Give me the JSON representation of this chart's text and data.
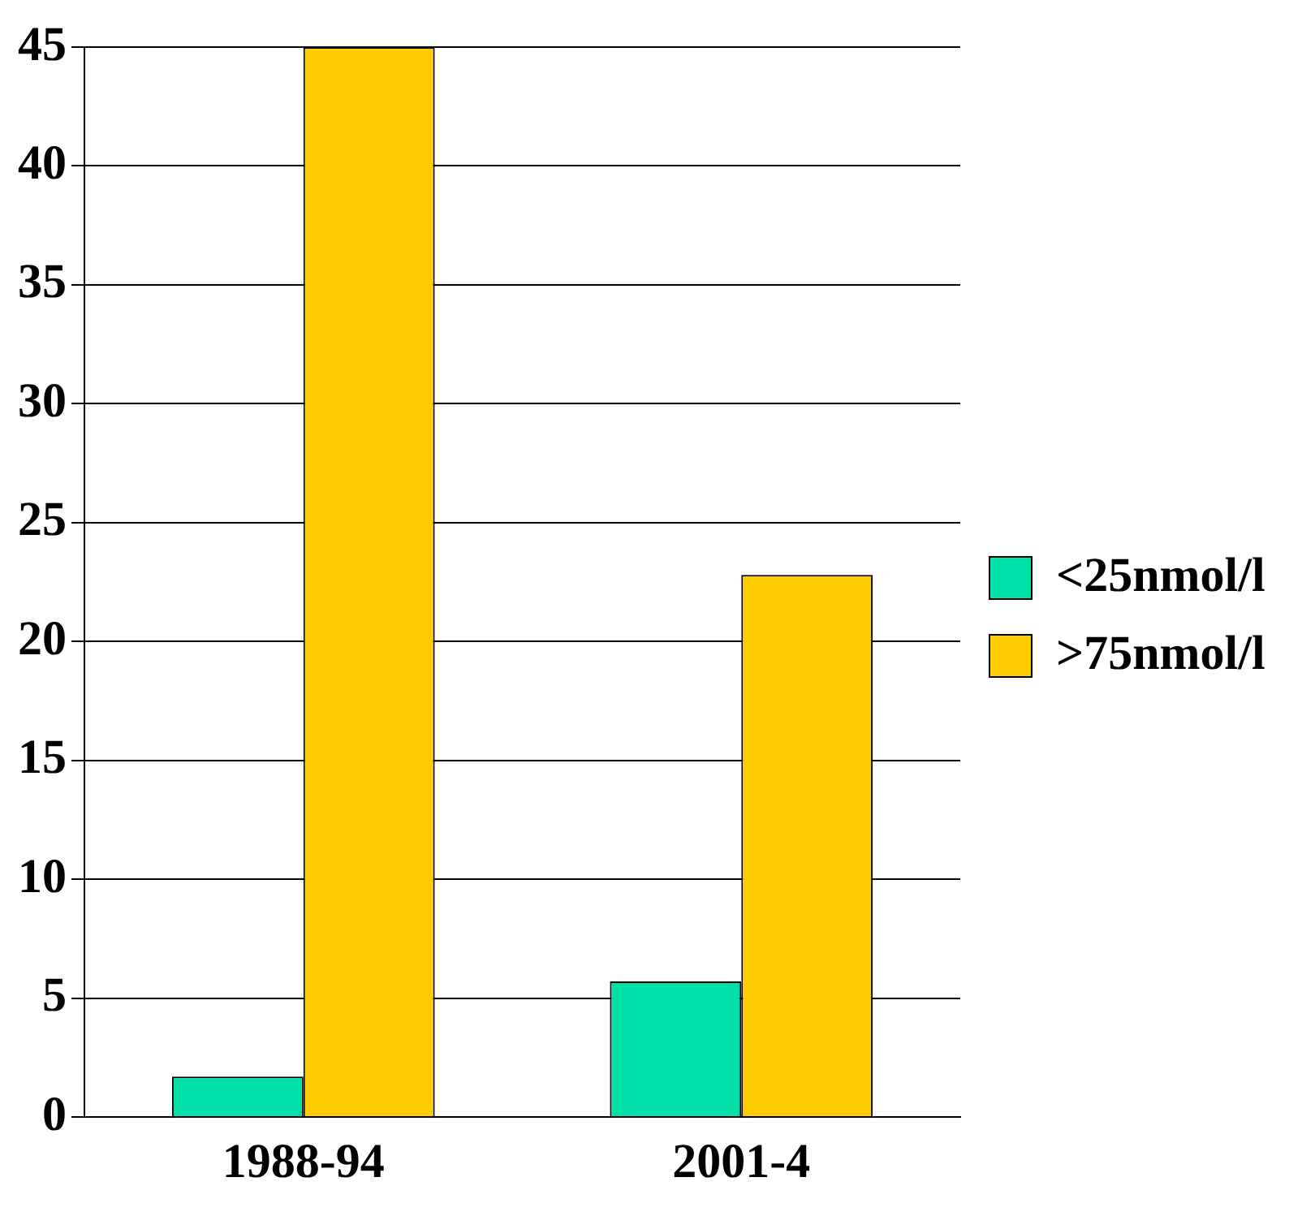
{
  "chart_data": {
    "type": "bar",
    "categories": [
      "1988-94",
      "2001-4"
    ],
    "series": [
      {
        "name": "<25nmol/l",
        "color": "#00e0a8",
        "values": [
          1.7,
          5.7
        ]
      },
      {
        "name": ">75nmol/l",
        "color": "#ffcc00",
        "values": [
          45,
          22.8
        ]
      }
    ],
    "ylim": [
      0,
      45
    ],
    "yticks": [
      0,
      5,
      10,
      15,
      20,
      25,
      30,
      35,
      40,
      45
    ],
    "grid": "y",
    "legend": "right"
  }
}
